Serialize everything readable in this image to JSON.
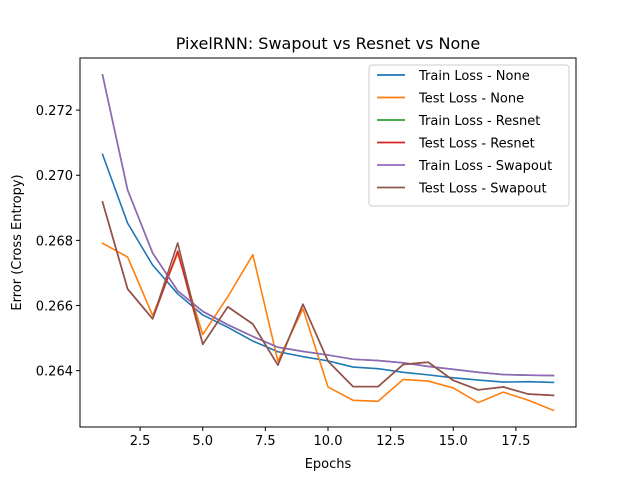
{
  "chart_data": {
    "type": "line",
    "title": "PixelRNN: Swapout vs Resnet vs None",
    "xlabel": "Epochs",
    "ylabel": "Error (Cross Entropy)",
    "xlim": [
      0.1,
      19.9
    ],
    "ylim": [
      0.26227,
      0.2736
    ],
    "xticks": [
      2.5,
      5.0,
      7.5,
      10.0,
      12.5,
      15.0,
      17.5
    ],
    "xtick_labels": [
      "2.5",
      "5.0",
      "7.5",
      "10.0",
      "12.5",
      "15.0",
      "17.5"
    ],
    "yticks": [
      0.264,
      0.266,
      0.268,
      0.27,
      0.272
    ],
    "ytick_labels": [
      "0.264",
      "0.266",
      "0.268",
      "0.270",
      "0.272"
    ],
    "grid": false,
    "legend_position": "top-right",
    "x": [
      1,
      2,
      3,
      4,
      5,
      6,
      7,
      8,
      9,
      10,
      11,
      12,
      13,
      14,
      15,
      16,
      17,
      18,
      19
    ],
    "series": [
      {
        "name": "Train Loss - None",
        "color": "#1f77b4",
        "values": [
          0.27064,
          0.26853,
          0.26724,
          0.26636,
          0.26571,
          0.26533,
          0.26491,
          0.26458,
          0.26443,
          0.2643,
          0.26411,
          0.26406,
          0.26395,
          0.26387,
          0.26378,
          0.26371,
          0.26365,
          0.26366,
          0.26364
        ]
      },
      {
        "name": "Test Loss - None",
        "color": "#ff7f0e",
        "values": [
          0.26791,
          0.26749,
          0.26569,
          0.2676,
          0.26511,
          0.26627,
          0.26756,
          0.26429,
          0.2659,
          0.2635,
          0.26309,
          0.26306,
          0.26373,
          0.26368,
          0.26347,
          0.26302,
          0.26334,
          0.26309,
          0.26278
        ]
      },
      {
        "name": "Train Loss - Resnet",
        "color": "#2ca02c",
        "values": [
          0.27308,
          0.26955,
          0.26761,
          0.26645,
          0.26582,
          0.26541,
          0.26505,
          0.26472,
          0.26459,
          0.26448,
          0.26435,
          0.26431,
          0.26424,
          0.26413,
          0.26404,
          0.26395,
          0.26388,
          0.26386,
          0.26385
        ]
      },
      {
        "name": "Test Loss - Resnet",
        "color": "#d62728",
        "values": [
          0.26918,
          0.26651,
          0.26559,
          0.26767,
          0.26481,
          0.26596,
          0.26543,
          0.26417,
          0.26604,
          0.26429,
          0.26351,
          0.26351,
          0.26419,
          0.26426,
          0.2637,
          0.26341,
          0.2635,
          0.26328,
          0.26324
        ]
      },
      {
        "name": "Train Loss - Swapout",
        "color": "#9467bd",
        "values": [
          0.27308,
          0.26955,
          0.26761,
          0.26645,
          0.26582,
          0.26541,
          0.26505,
          0.26472,
          0.26459,
          0.26448,
          0.26435,
          0.26431,
          0.26424,
          0.26413,
          0.26404,
          0.26395,
          0.26388,
          0.26386,
          0.26385
        ]
      },
      {
        "name": "Test Loss - Swapout",
        "color": "#8c564b",
        "values": [
          0.26918,
          0.26651,
          0.26559,
          0.26792,
          0.26481,
          0.26596,
          0.26543,
          0.26417,
          0.26604,
          0.26429,
          0.26351,
          0.26351,
          0.26419,
          0.26426,
          0.2637,
          0.26341,
          0.2635,
          0.26328,
          0.26324
        ]
      }
    ]
  }
}
